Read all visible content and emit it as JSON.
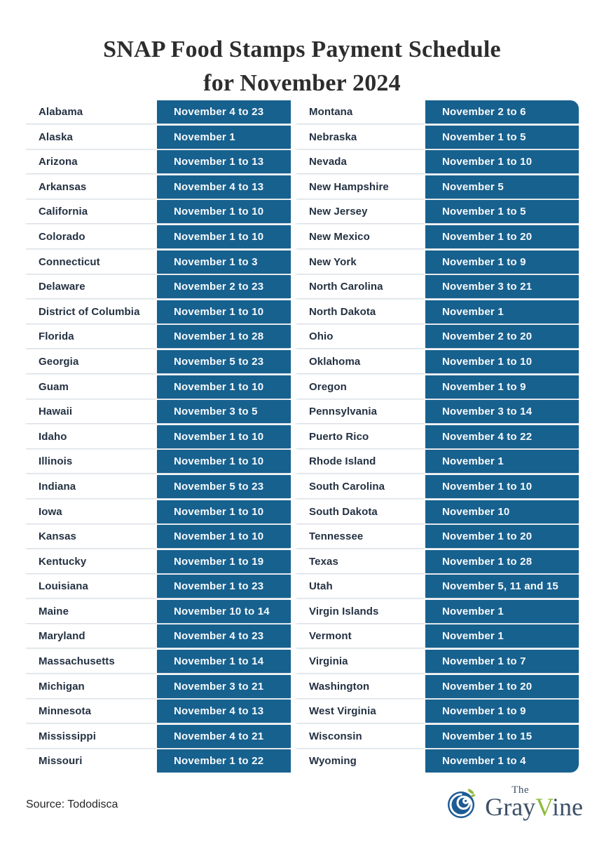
{
  "title": {
    "line1": "SNAP Food Stamps Payment Schedule",
    "line2": "for November 2024"
  },
  "table": {
    "columns": [
      {
        "rows": [
          {
            "state": "Alabama",
            "dates": "November 4 to 23"
          },
          {
            "state": "Alaska",
            "dates": "November 1"
          },
          {
            "state": "Arizona",
            "dates": "November 1 to 13"
          },
          {
            "state": "Arkansas",
            "dates": "November 4 to 13"
          },
          {
            "state": "California",
            "dates": "November 1 to 10"
          },
          {
            "state": "Colorado",
            "dates": "November 1 to 10"
          },
          {
            "state": "Connecticut",
            "dates": "November 1 to 3"
          },
          {
            "state": "Delaware",
            "dates": "November 2 to 23"
          },
          {
            "state": "District of Columbia",
            "dates": "November 1 to 10"
          },
          {
            "state": "Florida",
            "dates": "November 1 to 28"
          },
          {
            "state": "Georgia",
            "dates": "November 5 to 23"
          },
          {
            "state": "Guam",
            "dates": "November 1 to 10"
          },
          {
            "state": "Hawaii",
            "dates": "November 3 to 5"
          },
          {
            "state": "Idaho",
            "dates": "November 1 to 10"
          },
          {
            "state": "Illinois",
            "dates": "November 1 to 10"
          },
          {
            "state": "Indiana",
            "dates": "November 5 to 23"
          },
          {
            "state": "Iowa",
            "dates": "November 1 to 10"
          },
          {
            "state": "Kansas",
            "dates": "November 1 to 10"
          },
          {
            "state": "Kentucky",
            "dates": "November 1 to 19"
          },
          {
            "state": "Louisiana",
            "dates": "November 1 to 23"
          },
          {
            "state": "Maine",
            "dates": "November 10 to 14"
          },
          {
            "state": "Maryland",
            "dates": "November 4 to 23"
          },
          {
            "state": "Massachusetts",
            "dates": "November 1 to 14"
          },
          {
            "state": "Michigan",
            "dates": "November 3 to 21"
          },
          {
            "state": "Minnesota",
            "dates": "November 4 to 13"
          },
          {
            "state": "Mississippi",
            "dates": "November 4 to 21"
          },
          {
            "state": "Missouri",
            "dates": "November 1 to 22"
          }
        ]
      },
      {
        "rows": [
          {
            "state": "Montana",
            "dates": "November 2 to 6"
          },
          {
            "state": "Nebraska",
            "dates": "November 1 to 5"
          },
          {
            "state": "Nevada",
            "dates": "November 1 to 10"
          },
          {
            "state": "New Hampshire",
            "dates": "November 5"
          },
          {
            "state": "New Jersey",
            "dates": "November 1 to 5"
          },
          {
            "state": "New Mexico",
            "dates": "November 1 to 20"
          },
          {
            "state": "New York",
            "dates": "November 1 to 9"
          },
          {
            "state": "North Carolina",
            "dates": "November 3 to 21"
          },
          {
            "state": "North Dakota",
            "dates": "November 1"
          },
          {
            "state": "Ohio",
            "dates": "November 2 to 20"
          },
          {
            "state": "Oklahoma",
            "dates": "November 1 to 10"
          },
          {
            "state": "Oregon",
            "dates": "November 1 to 9"
          },
          {
            "state": "Pennsylvania",
            "dates": "November 3 to 14"
          },
          {
            "state": "Puerto Rico",
            "dates": "November 4 to 22"
          },
          {
            "state": "Rhode Island",
            "dates": "November 1"
          },
          {
            "state": "South Carolina",
            "dates": "November 1 to 10"
          },
          {
            "state": "South Dakota",
            "dates": "November 10"
          },
          {
            "state": "Tennessee",
            "dates": "November 1 to 20"
          },
          {
            "state": "Texas",
            "dates": "November 1 to 28"
          },
          {
            "state": "Utah",
            "dates": "November 5, 11 and 15"
          },
          {
            "state": "Virgin Islands",
            "dates": "November 1"
          },
          {
            "state": "Vermont",
            "dates": "November 1"
          },
          {
            "state": "Virginia",
            "dates": "November 1 to 7"
          },
          {
            "state": "Washington",
            "dates": "November 1 to 20"
          },
          {
            "state": "West Virginia",
            "dates": "November 1 to 9"
          },
          {
            "state": "Wisconsin",
            "dates": "November 1 to 15"
          },
          {
            "state": "Wyoming",
            "dates": "November 1 to 4"
          }
        ]
      }
    ]
  },
  "footer": {
    "source": "Source: Tododisca",
    "logo": {
      "the": "The",
      "gray": "Gray",
      "v": "V",
      "ine": "ine"
    }
  },
  "colors": {
    "cell_blue": "#17618f",
    "state_text": "#243142",
    "date_text": "#f7fafc",
    "title_text": "#2d2d2d",
    "source_text": "#262626",
    "logo_navy": "#3d5068",
    "logo_green": "#8fba3c",
    "logo_circle": "#1d5b94"
  }
}
